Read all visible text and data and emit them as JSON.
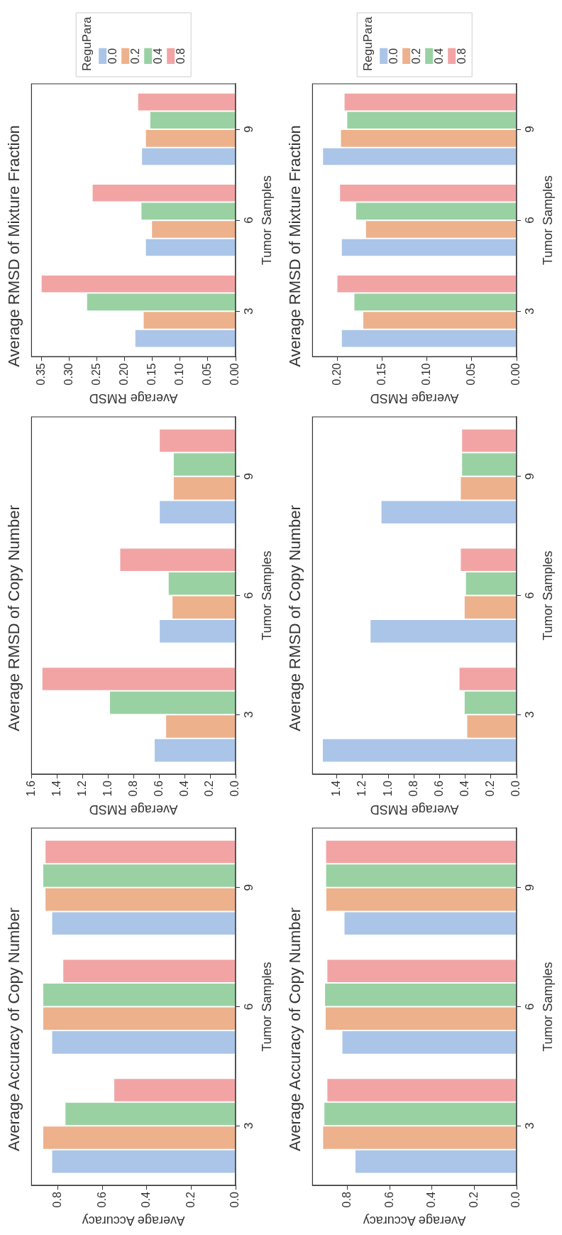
{
  "chart_data": [
    {
      "type": "bar",
      "orientation": "horizontal",
      "title": "Average RMSD of Mixture Fraction",
      "ylabel": "Tumor Samples",
      "xlabel": "Average RMSD",
      "categories": [
        "9",
        "6",
        "3"
      ],
      "series": [
        {
          "name": "0.0",
          "color": "#aac5e8",
          "values": [
            0.17,
            0.163,
            0.182
          ]
        },
        {
          "name": "0.2",
          "color": "#edb18c",
          "values": [
            0.163,
            0.152,
            0.167
          ]
        },
        {
          "name": "0.4",
          "color": "#99d1a3",
          "values": [
            0.155,
            0.171,
            0.269
          ]
        },
        {
          "name": "0.8",
          "color": "#f2a4a4",
          "values": [
            0.177,
            0.259,
            0.351
          ]
        }
      ],
      "xlim": [
        0.368,
        0
      ],
      "xticks": [
        {
          "value": 0,
          "label": "0.00"
        },
        0.05,
        {
          "value": 0.1,
          "label": "0.10"
        },
        0.15,
        {
          "value": 0.2,
          "label": "0.20"
        },
        0.25,
        {
          "value": 0.3,
          "label": "0.30"
        },
        0.35
      ],
      "legend": "top",
      "legend_title": "ReguPara"
    },
    {
      "type": "bar",
      "orientation": "horizontal",
      "title": "Average RMSD of Mixture Fraction",
      "ylabel": "Tumor Samples",
      "xlabel": "Average RMSD",
      "categories": [
        "9",
        "6",
        "3"
      ],
      "series": [
        {
          "name": "0.0",
          "color": "#aac5e8",
          "values": [
            0.217,
            0.196,
            0.196
          ]
        },
        {
          "name": "0.2",
          "color": "#edb18c",
          "values": [
            0.197,
            0.169,
            0.172
          ]
        },
        {
          "name": "0.4",
          "color": "#99d1a3",
          "values": [
            0.19,
            0.18,
            0.182
          ]
        },
        {
          "name": "0.8",
          "color": "#f2a4a4",
          "values": [
            0.193,
            0.198,
            0.201
          ]
        }
      ],
      "xlim": [
        0.228,
        0
      ],
      "xticks": [
        {
          "value": 0,
          "label": "0.00"
        },
        0.05,
        {
          "value": 0.1,
          "label": "0.10"
        },
        0.15,
        {
          "value": 0.2,
          "label": "0.20"
        }
      ],
      "legend": "top",
      "legend_title": "ReguPara"
    },
    {
      "type": "bar",
      "orientation": "horizontal",
      "title": "Average RMSD of Copy Number",
      "ylabel": "Tumor Samples",
      "xlabel": "Average RMSD",
      "categories": [
        "9",
        "6",
        "3"
      ],
      "series": [
        {
          "color": "#aac5e8",
          "values": [
            0.6,
            0.6,
            0.64
          ]
        },
        {
          "color": "#edb18c",
          "values": [
            0.49,
            0.5,
            0.55
          ]
        },
        {
          "color": "#99d1a3",
          "values": [
            0.49,
            0.53,
            0.99
          ]
        },
        {
          "color": "#f2a4a4",
          "values": [
            0.6,
            0.91,
            1.52
          ]
        }
      ],
      "xlim": [
        1.6,
        0
      ],
      "xticks": [
        {
          "value": 0,
          "label": "0.0"
        },
        0.2,
        0.4,
        0.6,
        0.8,
        {
          "value": 1,
          "label": "1.0"
        },
        1.2,
        1.4,
        1.6
      ],
      "legend": false
    },
    {
      "type": "bar",
      "orientation": "horizontal",
      "title": "Average RMSD of Copy Number",
      "ylabel": "Tumor Samples",
      "xlabel": "Average RMSD",
      "categories": [
        "9",
        "6",
        "3"
      ],
      "series": [
        {
          "color": "#aac5e8",
          "values": [
            1.058,
            1.143,
            1.515
          ]
        },
        {
          "color": "#edb18c",
          "values": [
            0.44,
            0.41,
            0.39
          ]
        },
        {
          "color": "#99d1a3",
          "values": [
            0.43,
            0.4,
            0.41
          ]
        },
        {
          "color": "#f2a4a4",
          "values": [
            0.43,
            0.44,
            0.45
          ]
        }
      ],
      "xlim": [
        1.59,
        0
      ],
      "xticks": [
        {
          "value": 0,
          "label": "0.0"
        },
        0.2,
        0.4,
        0.6,
        0.8,
        {
          "value": 1,
          "label": "1.0"
        },
        1.2,
        1.4
      ],
      "legend": false
    },
    {
      "type": "bar",
      "orientation": "horizontal",
      "title": "Average Accuracy of Copy Number",
      "ylabel": "Tumor Samples",
      "xlabel": "Average Accuracy",
      "categories": [
        "9",
        "6",
        "3"
      ],
      "series": [
        {
          "color": "#aac5e8",
          "values": [
            0.83,
            0.83,
            0.83
          ]
        },
        {
          "color": "#edb18c",
          "values": [
            0.86,
            0.87,
            0.87
          ]
        },
        {
          "color": "#99d1a3",
          "values": [
            0.87,
            0.87,
            0.77
          ]
        },
        {
          "color": "#f2a4a4",
          "values": [
            0.86,
            0.78,
            0.55
          ]
        }
      ],
      "xlim": [
        0.92,
        0
      ],
      "xticks": [
        {
          "value": 0,
          "label": "0.0"
        },
        0.2,
        0.4,
        0.6,
        0.8
      ],
      "legend": false
    },
    {
      "type": "bar",
      "orientation": "horizontal",
      "title": "Average Accuracy of Copy Number",
      "ylabel": "Tumor Samples",
      "xlabel": "Average Accuracy",
      "categories": [
        "9",
        "6",
        "3"
      ],
      "series": [
        {
          "color": "#aac5e8",
          "values": [
            0.817,
            0.827,
            0.765
          ]
        },
        {
          "color": "#edb18c",
          "values": [
            0.903,
            0.906,
            0.918
          ]
        },
        {
          "color": "#99d1a3",
          "values": [
            0.904,
            0.909,
            0.912
          ]
        },
        {
          "color": "#f2a4a4",
          "values": [
            0.904,
            0.898,
            0.898
          ]
        }
      ],
      "xlim": [
        0.965,
        0
      ],
      "xticks": [
        {
          "value": 0,
          "label": "0.0"
        },
        0.2,
        0.4,
        0.6,
        0.8
      ],
      "legend": false
    }
  ]
}
